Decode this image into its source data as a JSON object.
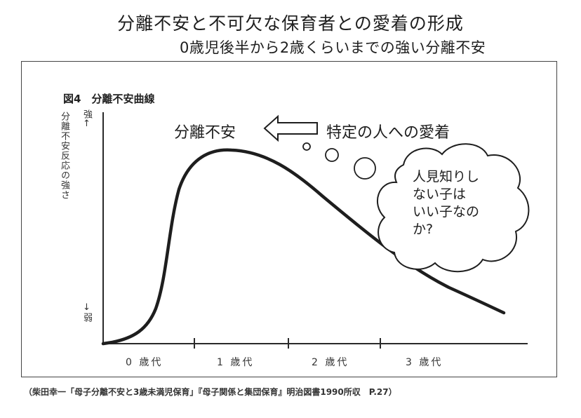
{
  "header": {
    "title": "分離不安と不可欠な保育者との愛着の形成",
    "subtitle": "0歳児後半から2歳くらいまでの強い分離不安"
  },
  "figure": {
    "label": "図4　分離不安曲線",
    "y_axis_label": "分離不安反応の強さ",
    "y_axis_top": "強↑",
    "y_axis_bottom": "↓弱",
    "x_ticks": [
      "0 歳代",
      "1 歳代",
      "2 歳代",
      "3 歳代"
    ],
    "left_callout": "分離不安",
    "right_callout": "特定の人への愛着",
    "thought_lines": [
      "人見知りし",
      "ない子は",
      "いい子なの",
      "か?"
    ]
  },
  "citation": "（柴田幸一「母子分離不安と3歳未満児保育」『母子関係と集団保育』明治図書1990所収　P.27）",
  "colors": {
    "ink": "#1e1e1e",
    "panel_border": "#444444"
  }
}
